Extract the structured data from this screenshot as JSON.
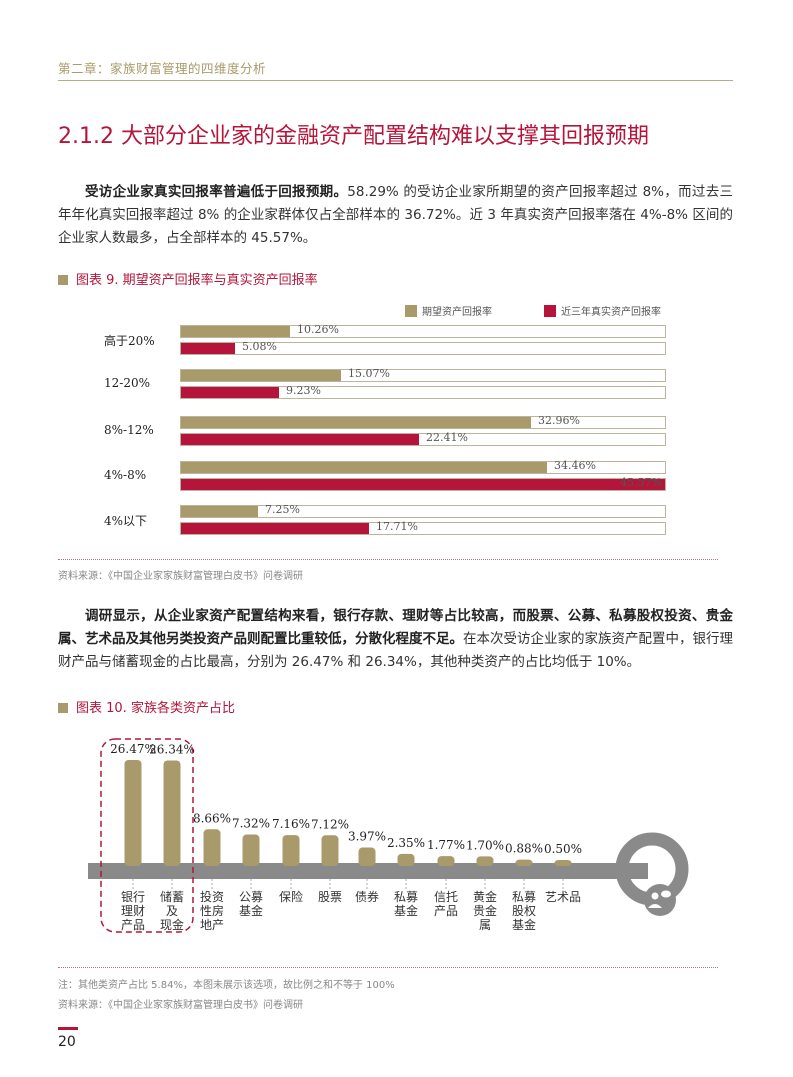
{
  "header": {
    "chapter": "第二章：家族财富管理的四维度分析"
  },
  "section": {
    "title": "2.1.2 大部分企业家的金融资产配置结构难以支撑其回报预期"
  },
  "para1": {
    "bold": "受访企业家真实回报率普遍低于回报预期。",
    "rest": "58.29% 的受访企业家所期望的资产回报率超过 8%，而过去三年年化真实回报率超过 8% 的企业家群体仅占全部样本的 36.72%。近 3 年真实资产回报率落在 4%-8% 区间的企业家人数最多，占全部样本的 45.57%。"
  },
  "figure9": {
    "title": "图表 9. 期望资产回报率与真实资产回报率",
    "source": "资料来源：《中国企业家家族财富管理白皮书》问卷调研"
  },
  "para2": {
    "bold": "调研显示，从企业家资产配置结构来看，银行存款、理财等占比较高，而股票、公募、私募股权投资、贵金属、艺术品及其他另类投资产品则配置比重较低，分散化程度不足。",
    "rest": "在本次受访企业家的家族资产配置中，银行理财产品与储蓄现金的占比最高，分别为 26.47% 和 26.34%，其他种类资产的占比均低于 10%。"
  },
  "figure10": {
    "title": "图表 10. 家族各类资产占比",
    "note": "注：其他类资产占比 5.84%，本图未展示该选项，故比例之和不等于 100%",
    "source": "资料来源：《中国企业家家族财富管理白皮书》问卷调研"
  },
  "colors": {
    "gold": "#a89a6a",
    "crimson": "#b5153a",
    "gray": "#888888"
  },
  "chart_data": [
    {
      "type": "bar",
      "orientation": "horizontal",
      "title": "图表 9. 期望资产回报率与真实资产回报率",
      "categories": [
        "高于20%",
        "12-20%",
        "8%-12%",
        "4%-8%",
        "4%以下"
      ],
      "series": [
        {
          "name": "期望资产回报率",
          "values": [
            10.26,
            15.07,
            32.96,
            34.46,
            7.25
          ],
          "labels": [
            "10.26%",
            "15.07%",
            "32.96%",
            "34.46%",
            "7.25%"
          ],
          "color": "#a89a6a"
        },
        {
          "name": "近三年真实资产回报率",
          "values": [
            5.08,
            9.23,
            22.41,
            45.57,
            17.71
          ],
          "labels": [
            "5.08%",
            "9.23%",
            "22.41%",
            "45.57%",
            "17.71%"
          ],
          "color": "#b5153a"
        }
      ],
      "xlim": [
        0,
        45.57
      ],
      "legend": "top-right"
    },
    {
      "type": "bar",
      "title": "图表 10. 家族各类资产占比",
      "categories": [
        "银行理财产品",
        "储蓄及现金",
        "投资性房地产",
        "公募基金",
        "保险",
        "股票",
        "债券",
        "私募基金",
        "信托产品",
        "黄金贵金属",
        "私募股权基金",
        "艺术品"
      ],
      "category_lines": [
        [
          "银行",
          "理财",
          "产品"
        ],
        [
          "储蓄",
          "及",
          "现金"
        ],
        [
          "投资",
          "性房",
          "地产"
        ],
        [
          "公募",
          "基金"
        ],
        [
          "保险"
        ],
        [
          "股票"
        ],
        [
          "债券"
        ],
        [
          "私募",
          "基金"
        ],
        [
          "信托",
          "产品"
        ],
        [
          "黄金",
          "贵金",
          "属"
        ],
        [
          "私募",
          "股权",
          "基金"
        ],
        [
          "艺术品"
        ]
      ],
      "values": [
        26.47,
        26.34,
        8.66,
        7.32,
        7.16,
        7.12,
        3.97,
        2.35,
        1.77,
        1.7,
        0.88,
        0.5
      ],
      "labels": [
        "26.47%",
        "26.34%",
        "8.66%",
        "7.32%",
        "7.16%",
        "7.12%",
        "3.97%",
        "2.35%",
        "1.77%",
        "1.70%",
        "0.88%",
        "0.50%"
      ],
      "ylim": [
        0,
        26.47
      ],
      "highlight": [
        0,
        1
      ]
    }
  ],
  "footer": {
    "page": "20"
  }
}
